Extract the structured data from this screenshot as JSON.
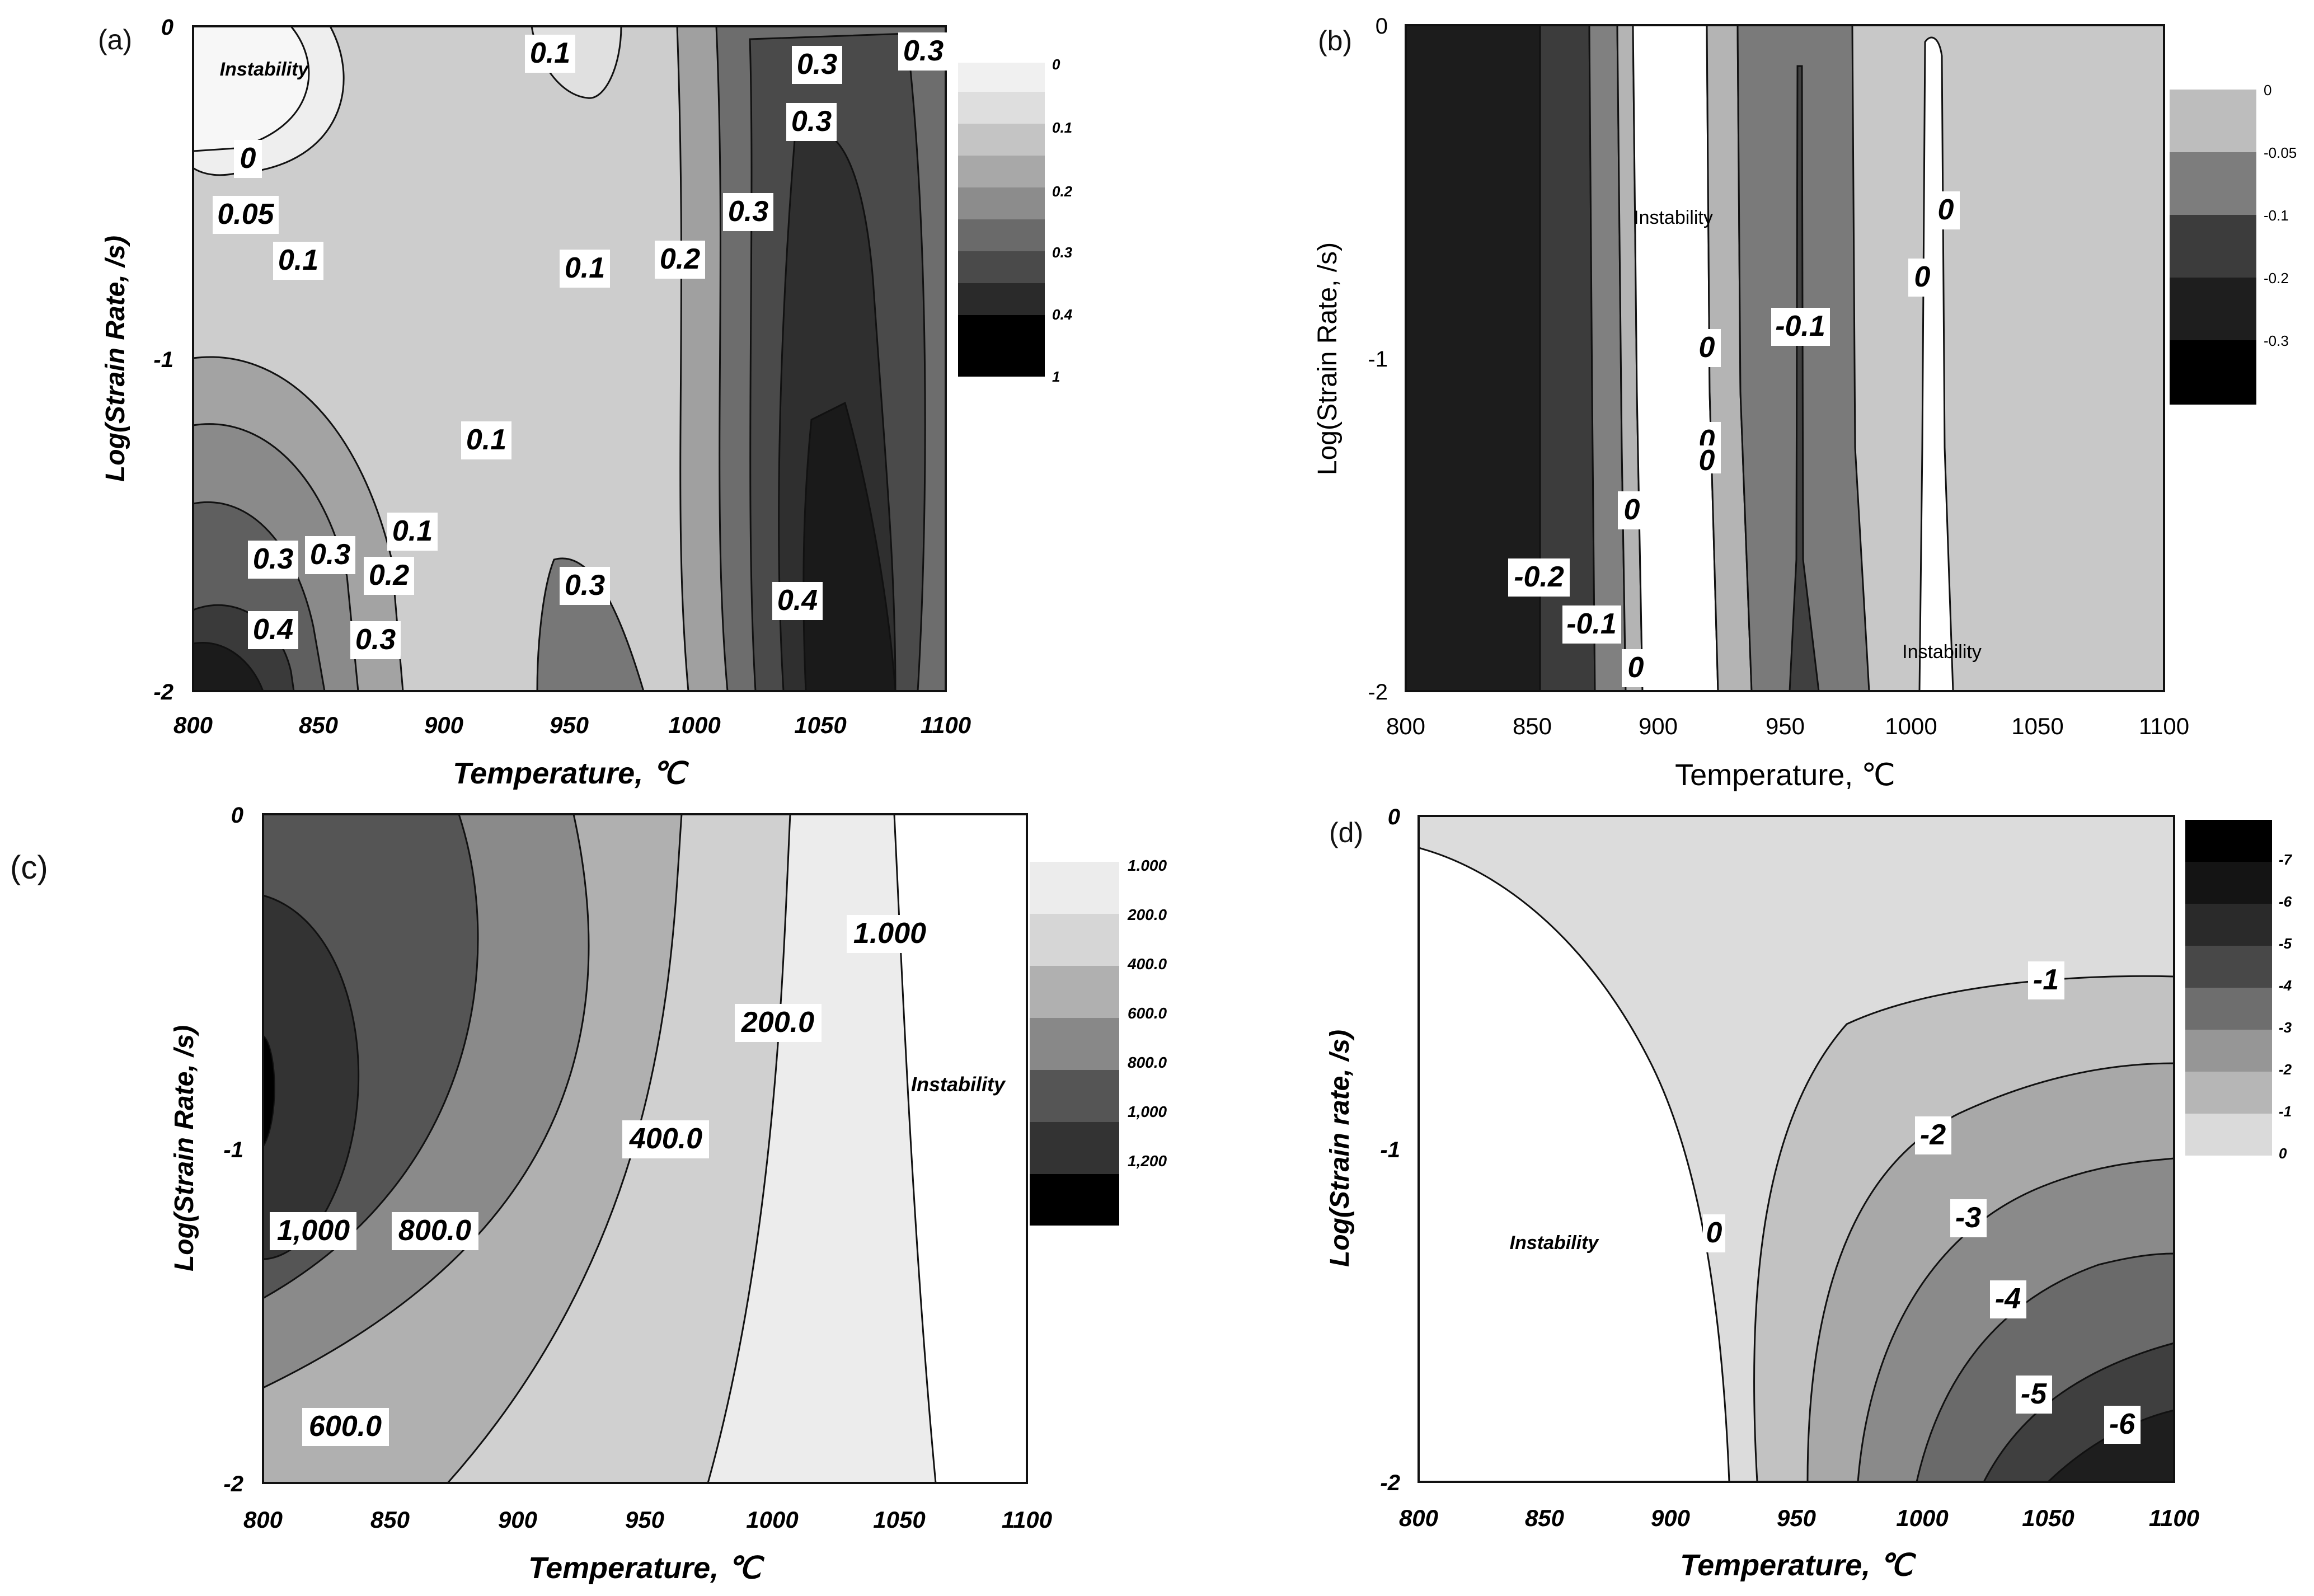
{
  "chart_data": [
    {
      "panel": "(a)",
      "type": "heatmap",
      "title": "",
      "xlabel": "Temperature, ℃",
      "ylabel": "Log(Strain Rate, /s)",
      "xlim": [
        800,
        1100
      ],
      "ylim": [
        -2,
        0
      ],
      "xticks": [
        "800",
        "850",
        "900",
        "950",
        "1000",
        "1050",
        "1100"
      ],
      "yticks": [
        "0",
        "-1",
        "-2"
      ],
      "legend_levels": [
        "0",
        "0.1",
        "0.2",
        "0.3",
        "0.4",
        "1"
      ],
      "contour_labels": [
        {
          "text": "0.1",
          "x": 958,
          "y": -0.08
        },
        {
          "text": "0.3",
          "x": 1050,
          "y": -0.11
        },
        {
          "text": "0.3",
          "x": 1093,
          "y": -0.07
        },
        {
          "text": "0.3",
          "x": 1053,
          "y": -0.28
        },
        {
          "text": "0",
          "x": 810,
          "y": -0.39
        },
        {
          "text": "0.05",
          "x": 811,
          "y": -0.56
        },
        {
          "text": "0.1",
          "x": 824,
          "y": -0.7
        },
        {
          "text": "0.3",
          "x": 1037,
          "y": -0.56
        },
        {
          "text": "0.1",
          "x": 957,
          "y": -0.73
        },
        {
          "text": "0.2",
          "x": 991,
          "y": -0.7
        },
        {
          "text": "0.1",
          "x": 929,
          "y": -1.25
        },
        {
          "text": "0.1",
          "x": 886,
          "y": -1.5
        },
        {
          "text": "0.3",
          "x": 834,
          "y": -1.6
        },
        {
          "text": "0.3",
          "x": 852,
          "y": -1.59
        },
        {
          "text": "0.2",
          "x": 864,
          "y": -1.65
        },
        {
          "text": "0.3",
          "x": 958,
          "y": -1.69
        },
        {
          "text": "0.4",
          "x": 1046,
          "y": -1.73
        },
        {
          "text": "0.4",
          "x": 832,
          "y": -1.82
        },
        {
          "text": "0.3",
          "x": 863,
          "y": -1.85
        }
      ],
      "annotations": [
        {
          "text": "Instability",
          "x": 841,
          "y": -0.13
        }
      ]
    },
    {
      "panel": "(b)",
      "type": "heatmap",
      "title": "",
      "xlabel": "Temperature, ℃",
      "ylabel": "Log(Strain Rate, /s)",
      "xlim": [
        800,
        1100
      ],
      "ylim": [
        -2,
        0
      ],
      "xticks": [
        "800",
        "850",
        "900",
        "950",
        "1000",
        "1050",
        "1100"
      ],
      "yticks": [
        "0",
        "-1",
        "-2"
      ],
      "legend_levels": [
        "0",
        "-0.05",
        "-0.1",
        "-0.2",
        "-0.3"
      ],
      "contour_labels": [
        {
          "text": "0",
          "x": 1010,
          "y": -0.56
        },
        {
          "text": "0",
          "x": 1004,
          "y": -0.76
        },
        {
          "text": "0",
          "x": 920,
          "y": -0.97
        },
        {
          "text": "-0.1",
          "x": 955,
          "y": -0.9
        },
        {
          "text": "0",
          "x": 920,
          "y": -1.24
        },
        {
          "text": "0",
          "x": 920,
          "y": -1.3
        },
        {
          "text": "0",
          "x": 889,
          "y": -1.46
        },
        {
          "text": "-0.2",
          "x": 851,
          "y": -1.66
        },
        {
          "text": "-0.1",
          "x": 872,
          "y": -1.8
        },
        {
          "text": "0",
          "x": 890,
          "y": -1.94
        }
      ],
      "annotations": [
        {
          "text": "Instability",
          "x": 916,
          "y": -0.58
        },
        {
          "text": "Instability",
          "x": 1013,
          "y": -1.89
        }
      ]
    },
    {
      "panel": "(c)",
      "type": "heatmap",
      "title": "",
      "xlabel": "Temperature, ℃",
      "ylabel": "Log(Strain Rate, /s)",
      "xlim": [
        800,
        1100
      ],
      "ylim": [
        -2,
        0
      ],
      "xticks": [
        "800",
        "850",
        "900",
        "950",
        "1000",
        "1050",
        "1100"
      ],
      "yticks": [
        "0",
        "-1",
        "-2"
      ],
      "legend_levels": [
        "1.000",
        "200.0",
        "400.0",
        "600.0",
        "800.0",
        "1,000",
        "1,200"
      ],
      "contour_labels": [
        {
          "text": "1.000",
          "x": 1058,
          "y": -0.35
        },
        {
          "text": "200.0",
          "x": 1002,
          "y": -0.5
        },
        {
          "text": "400.0",
          "x": 960,
          "y": -0.97
        },
        {
          "text": "1,000",
          "x": 821,
          "y": -1.26
        },
        {
          "text": "800.0",
          "x": 868,
          "y": -1.26
        },
        {
          "text": "600.0",
          "x": 834,
          "y": -1.9
        }
      ],
      "annotations": [
        {
          "text": "Instability",
          "x": 1075,
          "y": -0.81
        }
      ]
    },
    {
      "panel": "(d)",
      "type": "heatmap",
      "title": "",
      "xlabel": "Temperature, ℃",
      "ylabel": "Log(Strain rate, /s)",
      "xlim": [
        800,
        1100
      ],
      "ylim": [
        -2,
        0
      ],
      "xticks": [
        "800",
        "850",
        "900",
        "950",
        "1000",
        "1050",
        "1100"
      ],
      "yticks": [
        "0",
        "-1",
        "-2"
      ],
      "legend_levels": [
        "-7",
        "-6",
        "-5",
        "-4",
        "-3",
        "-2",
        "-1",
        "0"
      ],
      "contour_labels": [
        {
          "text": "-1",
          "x": 1069,
          "y": -0.33
        },
        {
          "text": "-2",
          "x": 1002,
          "y": -0.8
        },
        {
          "text": "-3",
          "x": 1010,
          "y": -1.21
        },
        {
          "text": "-4",
          "x": 1032,
          "y": -1.44
        },
        {
          "text": "-5",
          "x": 1043,
          "y": -1.72
        },
        {
          "text": "-6",
          "x": 1082,
          "y": -1.82
        },
        {
          "text": "0",
          "x": 915,
          "y": -1.24
        }
      ],
      "annotations": [
        {
          "text": "Instability",
          "x": 837,
          "y": -1.26
        }
      ]
    }
  ],
  "panels": [
    {
      "tag": "(a)"
    },
    {
      "tag": "(b)"
    },
    {
      "tag": "(c)"
    },
    {
      "tag": "(d)"
    }
  ]
}
